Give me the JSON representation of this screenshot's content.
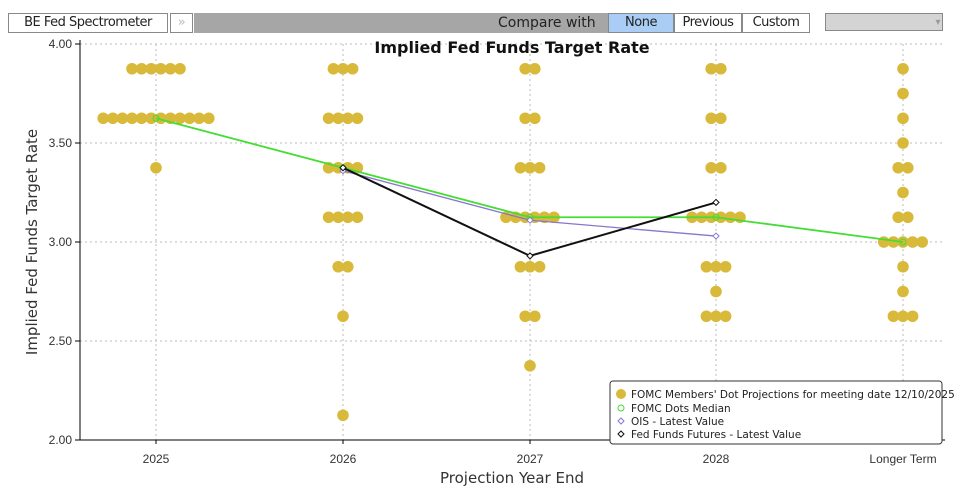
{
  "toolbar": {
    "app_title": "BE Fed Spectrometer",
    "expand_label": "»",
    "compare_label": "Compare with",
    "compare_options": [
      "None",
      "Previous",
      "Custom"
    ],
    "selected": "None",
    "dropdown_arrow": "▾"
  },
  "colors": {
    "dots": "#d9b93a",
    "median": "#44dd33",
    "ois": "#8877cc",
    "futures": "#111111"
  },
  "chart_data": {
    "type": "scatter",
    "title": "Implied Fed Funds Target Rate",
    "xlabel": "Projection Year End",
    "ylabel": "Implied Fed Funds Target Rate",
    "ylim": [
      2.0,
      4.0
    ],
    "yticks": [
      "2.00",
      "2.50",
      "3.00",
      "3.50",
      "4.00"
    ],
    "ytick_values": [
      2.0,
      2.5,
      3.0,
      3.5,
      4.0
    ],
    "categories": [
      "2025",
      "2026",
      "2027",
      "2028",
      "Longer Term"
    ],
    "grid": true,
    "legend_position": "bottom-right",
    "dots": [
      [
        [
          3.875,
          6
        ],
        [
          3.625,
          12
        ],
        [
          3.375,
          1
        ]
      ],
      [
        [
          3.875,
          3
        ],
        [
          3.625,
          4
        ],
        [
          3.375,
          4
        ],
        [
          3.125,
          4
        ],
        [
          2.875,
          2
        ],
        [
          2.625,
          1
        ],
        [
          2.125,
          1
        ]
      ],
      [
        [
          3.875,
          2
        ],
        [
          3.625,
          2
        ],
        [
          3.375,
          3
        ],
        [
          3.125,
          6
        ],
        [
          2.875,
          3
        ],
        [
          2.625,
          2
        ],
        [
          2.375,
          1
        ]
      ],
      [
        [
          3.875,
          2
        ],
        [
          3.625,
          2
        ],
        [
          3.375,
          2
        ],
        [
          3.125,
          6
        ],
        [
          2.875,
          3
        ],
        [
          2.75,
          1
        ],
        [
          2.625,
          3
        ]
      ],
      [
        [
          3.875,
          1
        ],
        [
          3.75,
          1
        ],
        [
          3.625,
          1
        ],
        [
          3.5,
          1
        ],
        [
          3.375,
          2
        ],
        [
          3.25,
          1
        ],
        [
          3.125,
          2
        ],
        [
          3.0,
          5
        ],
        [
          2.875,
          1
        ],
        [
          2.75,
          1
        ],
        [
          2.625,
          3
        ]
      ]
    ],
    "series": [
      {
        "name": "FOMC Dots Median",
        "values": [
          3.625,
          3.375,
          3.125,
          3.125,
          3.0
        ]
      },
      {
        "name": "OIS - Latest Value",
        "values": [
          null,
          3.36,
          3.11,
          3.03,
          null
        ]
      },
      {
        "name": "Fed Funds Futures - Latest Value",
        "values": [
          null,
          3.375,
          2.93,
          3.2,
          null
        ]
      }
    ],
    "legend": [
      "FOMC Members' Dot Projections for meeting date 12/10/2025",
      "FOMC Dots Median",
      "OIS - Latest Value",
      "Fed Funds Futures - Latest Value"
    ]
  }
}
